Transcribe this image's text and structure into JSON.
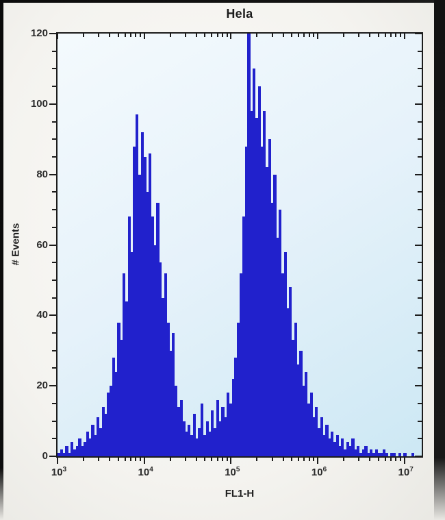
{
  "title": "Hela",
  "axes": {
    "x": {
      "label": "FL1-H",
      "scale": "log",
      "decade_exponents": [
        3,
        4,
        5,
        6,
        7
      ],
      "tick_base": "10"
    },
    "y": {
      "label": "# Events",
      "major_ticks": [
        0,
        20,
        40,
        60,
        80,
        100,
        120
      ],
      "minor_step": 5,
      "range": [
        0,
        120
      ]
    }
  },
  "chart_data": {
    "type": "bar",
    "subtype": "flow-cytometry-histogram",
    "title": "Hela",
    "xlabel": "FL1-H",
    "ylabel": "# Events",
    "x_scale": "log",
    "x_range_log10": [
      3.0,
      7.2
    ],
    "ylim": [
      0,
      120
    ],
    "grid": false,
    "legend": "none",
    "bin_log10_start": 3.0,
    "bin_log10_width": 0.03,
    "counts": [
      1,
      2,
      1,
      3,
      1,
      4,
      2,
      3,
      5,
      3,
      4,
      7,
      5,
      9,
      6,
      11,
      8,
      14,
      12,
      18,
      20,
      28,
      24,
      38,
      33,
      52,
      44,
      68,
      58,
      88,
      97,
      80,
      92,
      85,
      75,
      86,
      68,
      60,
      72,
      55,
      45,
      52,
      38,
      30,
      35,
      20,
      14,
      16,
      10,
      7,
      9,
      6,
      12,
      5,
      8,
      15,
      6,
      10,
      7,
      13,
      8,
      16,
      10,
      14,
      11,
      18,
      15,
      22,
      28,
      38,
      52,
      68,
      88,
      120,
      98,
      110,
      96,
      105,
      88,
      98,
      82,
      90,
      72,
      80,
      62,
      70,
      52,
      58,
      42,
      48,
      33,
      38,
      26,
      30,
      20,
      24,
      15,
      18,
      11,
      14,
      8,
      11,
      6,
      9,
      5,
      7,
      4,
      6,
      3,
      5,
      2,
      4,
      3,
      5,
      2,
      3,
      1,
      2,
      3,
      1,
      2,
      1,
      2,
      1,
      1,
      2,
      1,
      0,
      1,
      1,
      0,
      1,
      0,
      1,
      0,
      0,
      1,
      0,
      0,
      0
    ],
    "peaks": [
      {
        "center_fl1h": 7900,
        "max_events": 97
      },
      {
        "center_fl1h": 155000,
        "max_events": 120,
        "note": "clipped at axis top"
      }
    ]
  },
  "colors": {
    "bar_fill": "#2121cc",
    "plot_bg_top_left": "#f4fafd",
    "plot_bg_bottom_right": "#cde8f4",
    "axis": "#1c1c1c",
    "text": "#2b2b2b",
    "photo_frame": "#0d0d0d",
    "outer_bg": "#f4f3ef"
  }
}
